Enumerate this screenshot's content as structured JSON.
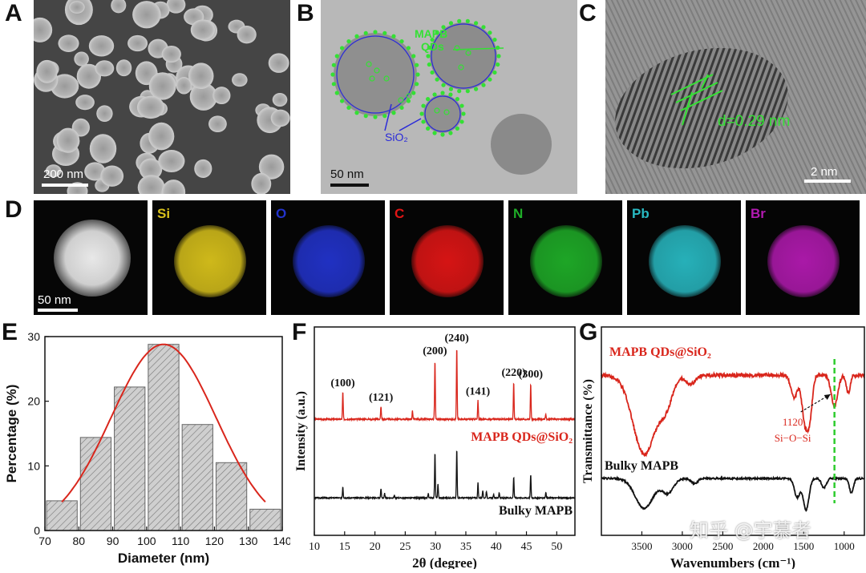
{
  "panels": {
    "a": {
      "letter": "A",
      "scale_bar": "200 nm"
    },
    "b": {
      "letter": "B",
      "scale_bar": "50 nm",
      "label_qds_line1": "MAPB",
      "label_qds_line2": "QDs",
      "label_sio2": "SiO₂"
    },
    "c": {
      "letter": "C",
      "scale_bar": "2 nm",
      "d_spacing": "d=0.29 nm"
    },
    "d": {
      "letter": "D",
      "scale_bar": "50 nm",
      "maps": [
        {
          "element": "Si",
          "color": "#d9c21b"
        },
        {
          "element": "O",
          "color": "#2233cc"
        },
        {
          "element": "C",
          "color": "#e01515"
        },
        {
          "element": "N",
          "color": "#1fae28"
        },
        {
          "element": "Pb",
          "color": "#28b9c2"
        },
        {
          "element": "Br",
          "color": "#b21ab0"
        }
      ]
    },
    "e": {
      "letter": "E"
    },
    "f": {
      "letter": "F"
    },
    "g": {
      "letter": "G"
    }
  },
  "watermark": "知乎 @宇慕者",
  "chart_data": [
    {
      "type": "bar",
      "panel": "E",
      "xlabel": "Diameter (nm)",
      "ylabel": "Percentage (%)",
      "xlim": [
        70,
        140
      ],
      "ylim": [
        0,
        30
      ],
      "xticks": [
        70,
        80,
        90,
        100,
        110,
        120,
        130,
        140
      ],
      "yticks": [
        0,
        10,
        20,
        30
      ],
      "bin_width": 10,
      "bins": [
        75,
        85,
        95,
        105,
        115,
        125,
        135
      ],
      "values": [
        4.6,
        14.4,
        22.2,
        28.8,
        16.4,
        10.5,
        3.3
      ],
      "fit": {
        "type": "gaussian",
        "mean": 105,
        "sigma": 15.5,
        "peak": 28.8,
        "color": "#d9261c"
      }
    },
    {
      "type": "line",
      "panel": "F",
      "xlabel": "2θ (degree)",
      "ylabel": "Intensity (a.u.)",
      "xlim": [
        10,
        53
      ],
      "xticks": [
        10,
        15,
        20,
        25,
        30,
        35,
        40,
        45,
        50
      ],
      "peak_labels": [
        {
          "text": "(100)",
          "x": 14.7
        },
        {
          "text": "(121)",
          "x": 21.0
        },
        {
          "text": "(200)",
          "x": 29.9
        },
        {
          "text": "(240)",
          "x": 33.5
        },
        {
          "text": "(141)",
          "x": 37.0
        },
        {
          "text": "(220)",
          "x": 42.9
        },
        {
          "text": "(300)",
          "x": 45.7
        }
      ],
      "series": [
        {
          "name": "MAPB QDs@SiO₂",
          "color": "#d9261c",
          "peaks": [
            [
              14.7,
              0.38
            ],
            [
              21.0,
              0.18
            ],
            [
              26.2,
              0.12
            ],
            [
              29.9,
              0.82
            ],
            [
              33.5,
              1.0
            ],
            [
              37.0,
              0.26
            ],
            [
              42.9,
              0.52
            ],
            [
              45.7,
              0.5
            ],
            [
              48.2,
              0.07
            ]
          ]
        },
        {
          "name": "Bulky MAPB",
          "color": "#111111",
          "peaks": [
            [
              14.7,
              0.2
            ],
            [
              21.0,
              0.17
            ],
            [
              21.6,
              0.08
            ],
            [
              23.2,
              0.05
            ],
            [
              28.8,
              0.08
            ],
            [
              29.9,
              0.82
            ],
            [
              30.4,
              0.25
            ],
            [
              33.5,
              0.87
            ],
            [
              37.0,
              0.27
            ],
            [
              37.8,
              0.14
            ],
            [
              38.4,
              0.12
            ],
            [
              39.6,
              0.06
            ],
            [
              40.5,
              0.1
            ],
            [
              42.9,
              0.38
            ],
            [
              45.7,
              0.42
            ],
            [
              48.2,
              0.1
            ]
          ]
        }
      ]
    },
    {
      "type": "line",
      "panel": "G",
      "xlabel": "Wavenumbers (cm⁻¹)",
      "ylabel": "Transmittance (%)",
      "xlim": [
        4000,
        750
      ],
      "xticks": [
        3500,
        3000,
        2500,
        2000,
        1500,
        1000
      ],
      "annotation": {
        "text_line1": "1120",
        "text_line2": "Si−O−Si",
        "x": 1120
      },
      "series": [
        {
          "name": "MAPB QDs@SiO₂",
          "color": "#d9261c",
          "dips": [
            [
              3470,
              0.9,
              140
            ],
            [
              3200,
              0.3,
              80
            ],
            [
              2900,
              0.1,
              60
            ],
            [
              1620,
              0.25,
              40
            ],
            [
              1480,
              0.55,
              40
            ],
            [
              1420,
              0.35,
              30
            ],
            [
              1120,
              0.35,
              40
            ],
            [
              950,
              0.2,
              25
            ]
          ]
        },
        {
          "name": "Bulky MAPB",
          "color": "#111111",
          "dips": [
            [
              3470,
              0.72,
              110
            ],
            [
              3180,
              0.35,
              70
            ],
            [
              2850,
              0.12,
              40
            ],
            [
              1580,
              0.45,
              35
            ],
            [
              1470,
              0.75,
              35
            ],
            [
              1250,
              0.22,
              30
            ],
            [
              910,
              0.35,
              25
            ]
          ]
        }
      ]
    }
  ]
}
